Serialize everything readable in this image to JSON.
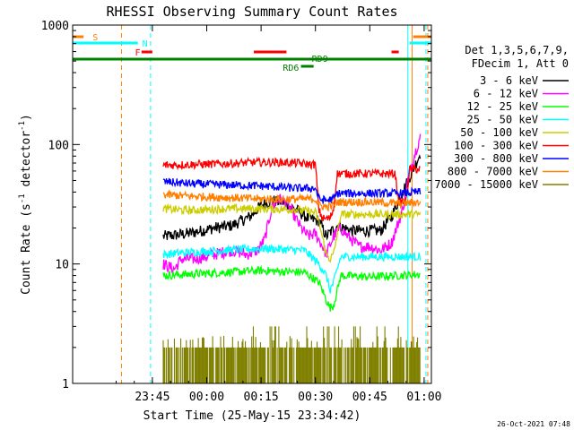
{
  "chart_data": {
    "type": "line",
    "title": "RHESSI Observing Summary Count Rates",
    "xlabel": "Start Time (25-May-15 23:34:42)",
    "ylabel_main": "Count Rate (s",
    "ylabel_sup1": "-1",
    "ylabel_mid": " detector",
    "ylabel_sup2": "-1",
    "ylabel_end": ")",
    "y_scale": "log",
    "ylim": [
      1,
      1000
    ],
    "xlim_minutes": [
      -12,
      87
    ],
    "x_ticks": [
      {
        "label": "23:45",
        "m": 10
      },
      {
        "label": "00:00",
        "m": 25
      },
      {
        "label": "00:15",
        "m": 40
      },
      {
        "label": "00:30",
        "m": 55
      },
      {
        "label": "00:45",
        "m": 70
      },
      {
        "label": "01:00",
        "m": 85
      }
    ],
    "y_ticks": [
      {
        "label": "1",
        "v": 1
      },
      {
        "label": "10",
        "v": 10
      },
      {
        "label": "100",
        "v": 100
      },
      {
        "label": "1000",
        "v": 1000
      }
    ],
    "legend_header": [
      "Det 1,3,5,6,7,9,",
      "FDecim 1, Att 0"
    ],
    "legend_position": "right",
    "timestamp": "26-Oct-2021 07:48",
    "series": [
      {
        "name": "3 - 6 keV",
        "color": "#000000",
        "points": [
          [
            13,
            17
          ],
          [
            20,
            18
          ],
          [
            27,
            20
          ],
          [
            32,
            21
          ],
          [
            37,
            25
          ],
          [
            40,
            31
          ],
          [
            43,
            34
          ],
          [
            46,
            33
          ],
          [
            50,
            28
          ],
          [
            53,
            24
          ],
          [
            56,
            23
          ],
          [
            58,
            17
          ],
          [
            61,
            21
          ],
          [
            65,
            19
          ],
          [
            70,
            19
          ],
          [
            73,
            19
          ],
          [
            76,
            25
          ],
          [
            79,
            40
          ],
          [
            82,
            62
          ],
          [
            84,
            85
          ]
        ]
      },
      {
        "name": "6 - 12 keV",
        "color": "#ff00ff",
        "points": [
          [
            13,
            10
          ],
          [
            16,
            9
          ],
          [
            18,
            11
          ],
          [
            22,
            11
          ],
          [
            27,
            12
          ],
          [
            32,
            13
          ],
          [
            36,
            12
          ],
          [
            39,
            13
          ],
          [
            41,
            16
          ],
          [
            43,
            30
          ],
          [
            45,
            35
          ],
          [
            47,
            33
          ],
          [
            49,
            26
          ],
          [
            51,
            20
          ],
          [
            53,
            17
          ],
          [
            55,
            18
          ],
          [
            57,
            14
          ],
          [
            58,
            12
          ],
          [
            60,
            17
          ],
          [
            62,
            20
          ],
          [
            64,
            17
          ],
          [
            67,
            14
          ],
          [
            70,
            14
          ],
          [
            73,
            13
          ],
          [
            76,
            15
          ],
          [
            79,
            28
          ],
          [
            81,
            60
          ],
          [
            83,
            95
          ],
          [
            84,
            118
          ]
        ]
      },
      {
        "name": "12 - 25 keV",
        "color": "#00ff00",
        "points": [
          [
            13,
            8
          ],
          [
            20,
            8.2
          ],
          [
            30,
            8.5
          ],
          [
            40,
            8.8
          ],
          [
            52,
            8.5
          ],
          [
            56,
            7
          ],
          [
            58,
            5
          ],
          [
            59,
            4.3
          ],
          [
            60,
            4.5
          ],
          [
            62,
            8
          ],
          [
            70,
            7.8
          ],
          [
            78,
            8
          ],
          [
            84,
            8.2
          ]
        ]
      },
      {
        "name": "25 - 50 keV",
        "color": "#00ffff",
        "points": [
          [
            13,
            12
          ],
          [
            20,
            12.5
          ],
          [
            30,
            13
          ],
          [
            40,
            13.5
          ],
          [
            52,
            13
          ],
          [
            56,
            10
          ],
          [
            58,
            8
          ],
          [
            59,
            6
          ],
          [
            60,
            7
          ],
          [
            62,
            11.5
          ],
          [
            70,
            11.5
          ],
          [
            78,
            11.5
          ],
          [
            84,
            11.5
          ]
        ]
      },
      {
        "name": "50 - 100 keV",
        "color": "#cccc00",
        "points": [
          [
            13,
            29
          ],
          [
            20,
            28
          ],
          [
            30,
            29
          ],
          [
            40,
            29
          ],
          [
            50,
            28.5
          ],
          [
            55,
            27
          ],
          [
            56,
            22
          ],
          [
            58,
            12
          ],
          [
            59,
            11
          ],
          [
            60,
            12
          ],
          [
            62,
            26
          ],
          [
            70,
            26
          ],
          [
            78,
            26
          ],
          [
            84,
            26
          ]
        ]
      },
      {
        "name": "100 - 300 keV",
        "color": "#ff0000",
        "points": [
          [
            13,
            67
          ],
          [
            20,
            68
          ],
          [
            30,
            69
          ],
          [
            38,
            71
          ],
          [
            45,
            71
          ],
          [
            50,
            70
          ],
          [
            54,
            68
          ],
          [
            55,
            68
          ],
          [
            56,
            28
          ],
          [
            57,
            24
          ],
          [
            59,
            24
          ],
          [
            60,
            29
          ],
          [
            61,
            57
          ],
          [
            70,
            57
          ],
          [
            77,
            57
          ],
          [
            78,
            33
          ],
          [
            80,
            33
          ],
          [
            81,
            62
          ],
          [
            84,
            62
          ]
        ]
      },
      {
        "name": "300 - 800 keV",
        "color": "#0000ff",
        "points": [
          [
            13,
            49
          ],
          [
            20,
            47
          ],
          [
            30,
            46
          ],
          [
            40,
            45
          ],
          [
            50,
            43
          ],
          [
            55,
            43
          ],
          [
            56,
            35
          ],
          [
            58,
            34
          ],
          [
            60,
            35
          ],
          [
            61,
            39
          ],
          [
            70,
            39
          ],
          [
            78,
            39
          ],
          [
            84,
            40
          ]
        ]
      },
      {
        "name": "800 - 7000 keV",
        "color": "#ff8000",
        "points": [
          [
            13,
            38
          ],
          [
            20,
            37
          ],
          [
            30,
            36
          ],
          [
            40,
            35
          ],
          [
            50,
            35
          ],
          [
            55,
            35
          ],
          [
            56,
            31
          ],
          [
            58,
            30
          ],
          [
            60,
            31
          ],
          [
            61,
            33
          ],
          [
            70,
            33
          ],
          [
            78,
            32
          ],
          [
            84,
            33
          ]
        ]
      },
      {
        "name": "7000 - 15000 keV",
        "color": "#808000",
        "points": [
          [
            13,
            1.9
          ],
          [
            84,
            1.9
          ]
        ]
      }
    ],
    "flags": [
      {
        "label": "S",
        "color": "#ff8000"
      },
      {
        "label": "N",
        "color": "#00ffff"
      },
      {
        "label": "F",
        "color": "#ff0000"
      },
      {
        "label": "RD9",
        "color": "#008000"
      },
      {
        "label": "RD6",
        "color": "#008000"
      }
    ]
  }
}
